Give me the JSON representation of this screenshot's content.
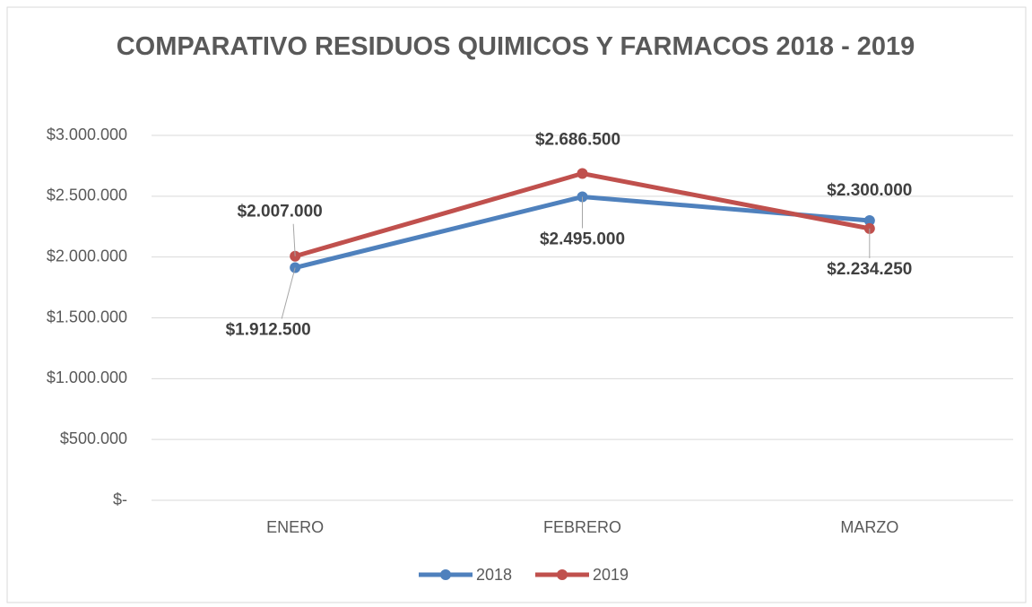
{
  "chart_data": {
    "type": "line",
    "title": "COMPARATIVO RESIDUOS QUIMICOS Y FARMACOS 2018 - 2019",
    "categories": [
      "ENERO",
      "FEBRERO",
      "MARZO"
    ],
    "series": [
      {
        "name": "2018",
        "color": "#4f81bd",
        "values": [
          1912500,
          2495000,
          2300000
        ],
        "value_labels": [
          "$1.912.500",
          "$2.495.000",
          "$2.300.000"
        ]
      },
      {
        "name": "2019",
        "color": "#c0504d",
        "values": [
          2007000,
          2686500,
          2234250
        ],
        "value_labels": [
          "$2.007.000",
          "$2.686.500",
          "$2.234.250"
        ]
      }
    ],
    "ylim": [
      0,
      3000000
    ],
    "yticks": [
      {
        "value": 0,
        "label": "$-"
      },
      {
        "value": 500000,
        "label": "$500.000"
      },
      {
        "value": 1000000,
        "label": "$1.000.000"
      },
      {
        "value": 1500000,
        "label": "$1.500.000"
      },
      {
        "value": 2000000,
        "label": "$2.000.000"
      },
      {
        "value": 2500000,
        "label": "$2.500.000"
      },
      {
        "value": 3000000,
        "label": "$3.000.000"
      }
    ],
    "grid": true,
    "legend": "bottom"
  }
}
